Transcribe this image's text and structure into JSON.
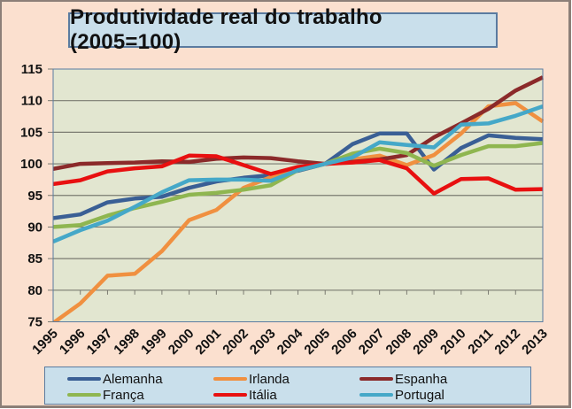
{
  "chart_data": {
    "type": "line",
    "title": "Produtividade real do trabalho (2005=100)",
    "xlabel": "",
    "ylabel": "",
    "ylim": [
      75,
      115
    ],
    "yticks": [
      75,
      80,
      85,
      90,
      95,
      100,
      105,
      110,
      115
    ],
    "grid": true,
    "legend_position": "bottom",
    "categories": [
      "1995",
      "1996",
      "1997",
      "1998",
      "1999",
      "2000",
      "2001",
      "2002",
      "2003",
      "2004",
      "2005",
      "2006",
      "2007",
      "2008",
      "2009",
      "2010",
      "2011",
      "2012",
      "2013"
    ],
    "series": [
      {
        "name": "Alemanha",
        "color": "#3a5f95",
        "values": [
          91.4,
          92.0,
          93.9,
          94.5,
          94.8,
          96.2,
          97.2,
          97.8,
          98.2,
          98.9,
          100.0,
          103.1,
          104.8,
          104.8,
          99.1,
          102.5,
          104.5,
          104.1,
          103.9
        ]
      },
      {
        "name": "Irlanda",
        "color": "#f09040",
        "values": [
          74.8,
          77.9,
          82.3,
          82.6,
          86.2,
          91.1,
          92.7,
          96.2,
          97.9,
          99.2,
          100.0,
          100.7,
          101.3,
          99.8,
          101.4,
          104.8,
          109.1,
          109.6,
          106.7
        ]
      },
      {
        "name": "Espanha",
        "color": "#8b2a2a",
        "values": [
          99.2,
          100.0,
          100.1,
          100.2,
          100.4,
          100.3,
          100.8,
          101.0,
          100.9,
          100.4,
          100.0,
          100.3,
          100.7,
          101.4,
          104.2,
          106.4,
          108.7,
          111.6,
          113.7
        ]
      },
      {
        "name": "França",
        "color": "#8fb650",
        "values": [
          90.0,
          90.3,
          91.8,
          93.0,
          94.0,
          95.1,
          95.4,
          95.9,
          96.6,
          99.0,
          100.0,
          101.6,
          102.4,
          101.7,
          99.7,
          101.4,
          102.8,
          102.8,
          103.3
        ]
      },
      {
        "name": "Itália",
        "color": "#e81010",
        "values": [
          96.8,
          97.4,
          98.8,
          99.3,
          99.6,
          101.3,
          101.2,
          99.8,
          98.4,
          99.5,
          100.0,
          100.2,
          100.6,
          99.3,
          95.3,
          97.6,
          97.7,
          95.9,
          96.0
        ]
      },
      {
        "name": "Portugal",
        "color": "#45a8c8",
        "values": [
          87.7,
          89.5,
          91.0,
          93.2,
          95.5,
          97.4,
          97.5,
          97.5,
          97.3,
          99.0,
          100.0,
          101.0,
          103.4,
          103.0,
          102.6,
          106.2,
          106.4,
          107.6,
          109.1
        ]
      }
    ]
  },
  "colors": {
    "frame_background": "#fbe0cf",
    "plot_background": "#e2e6d0",
    "title_box": "#c9dfeb",
    "legend_box": "#c9dfeb"
  }
}
